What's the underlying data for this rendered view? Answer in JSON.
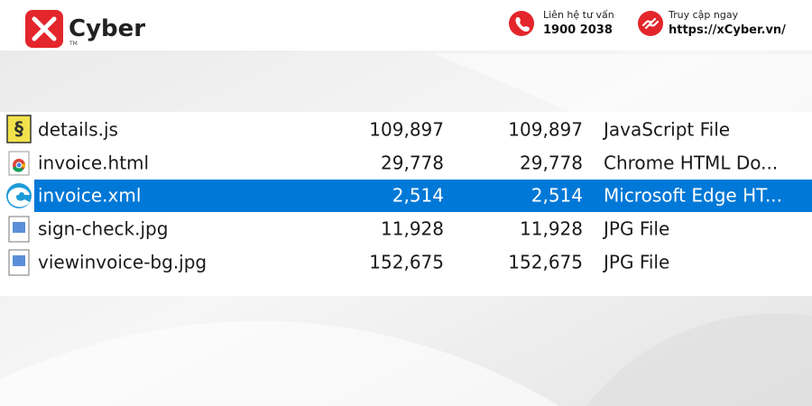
{
  "header": {
    "brand": "Cyber",
    "trademark": "TM",
    "contact": {
      "label": "Liên hệ tư vấn",
      "value": "1900 2038"
    },
    "link": {
      "label": "Truy cập ngay",
      "value": "https://xCyber.vn/"
    }
  },
  "table": {
    "rows": [
      [
        "details.js",
        "109,897",
        "109,897",
        "JavaScript File"
      ],
      [
        "invoice.html",
        "29,778",
        "29,778",
        "Chrome HTML Do..."
      ],
      [
        "invoice.xml",
        "2,514",
        "2,514",
        "Microsoft Edge HT..."
      ],
      [
        "sign-check.jpg",
        "11,928",
        "11,928",
        "JPG File"
      ],
      [
        "viewinvoice-bg.jpg",
        "152,675",
        "152,675",
        "JPG File"
      ]
    ]
  }
}
